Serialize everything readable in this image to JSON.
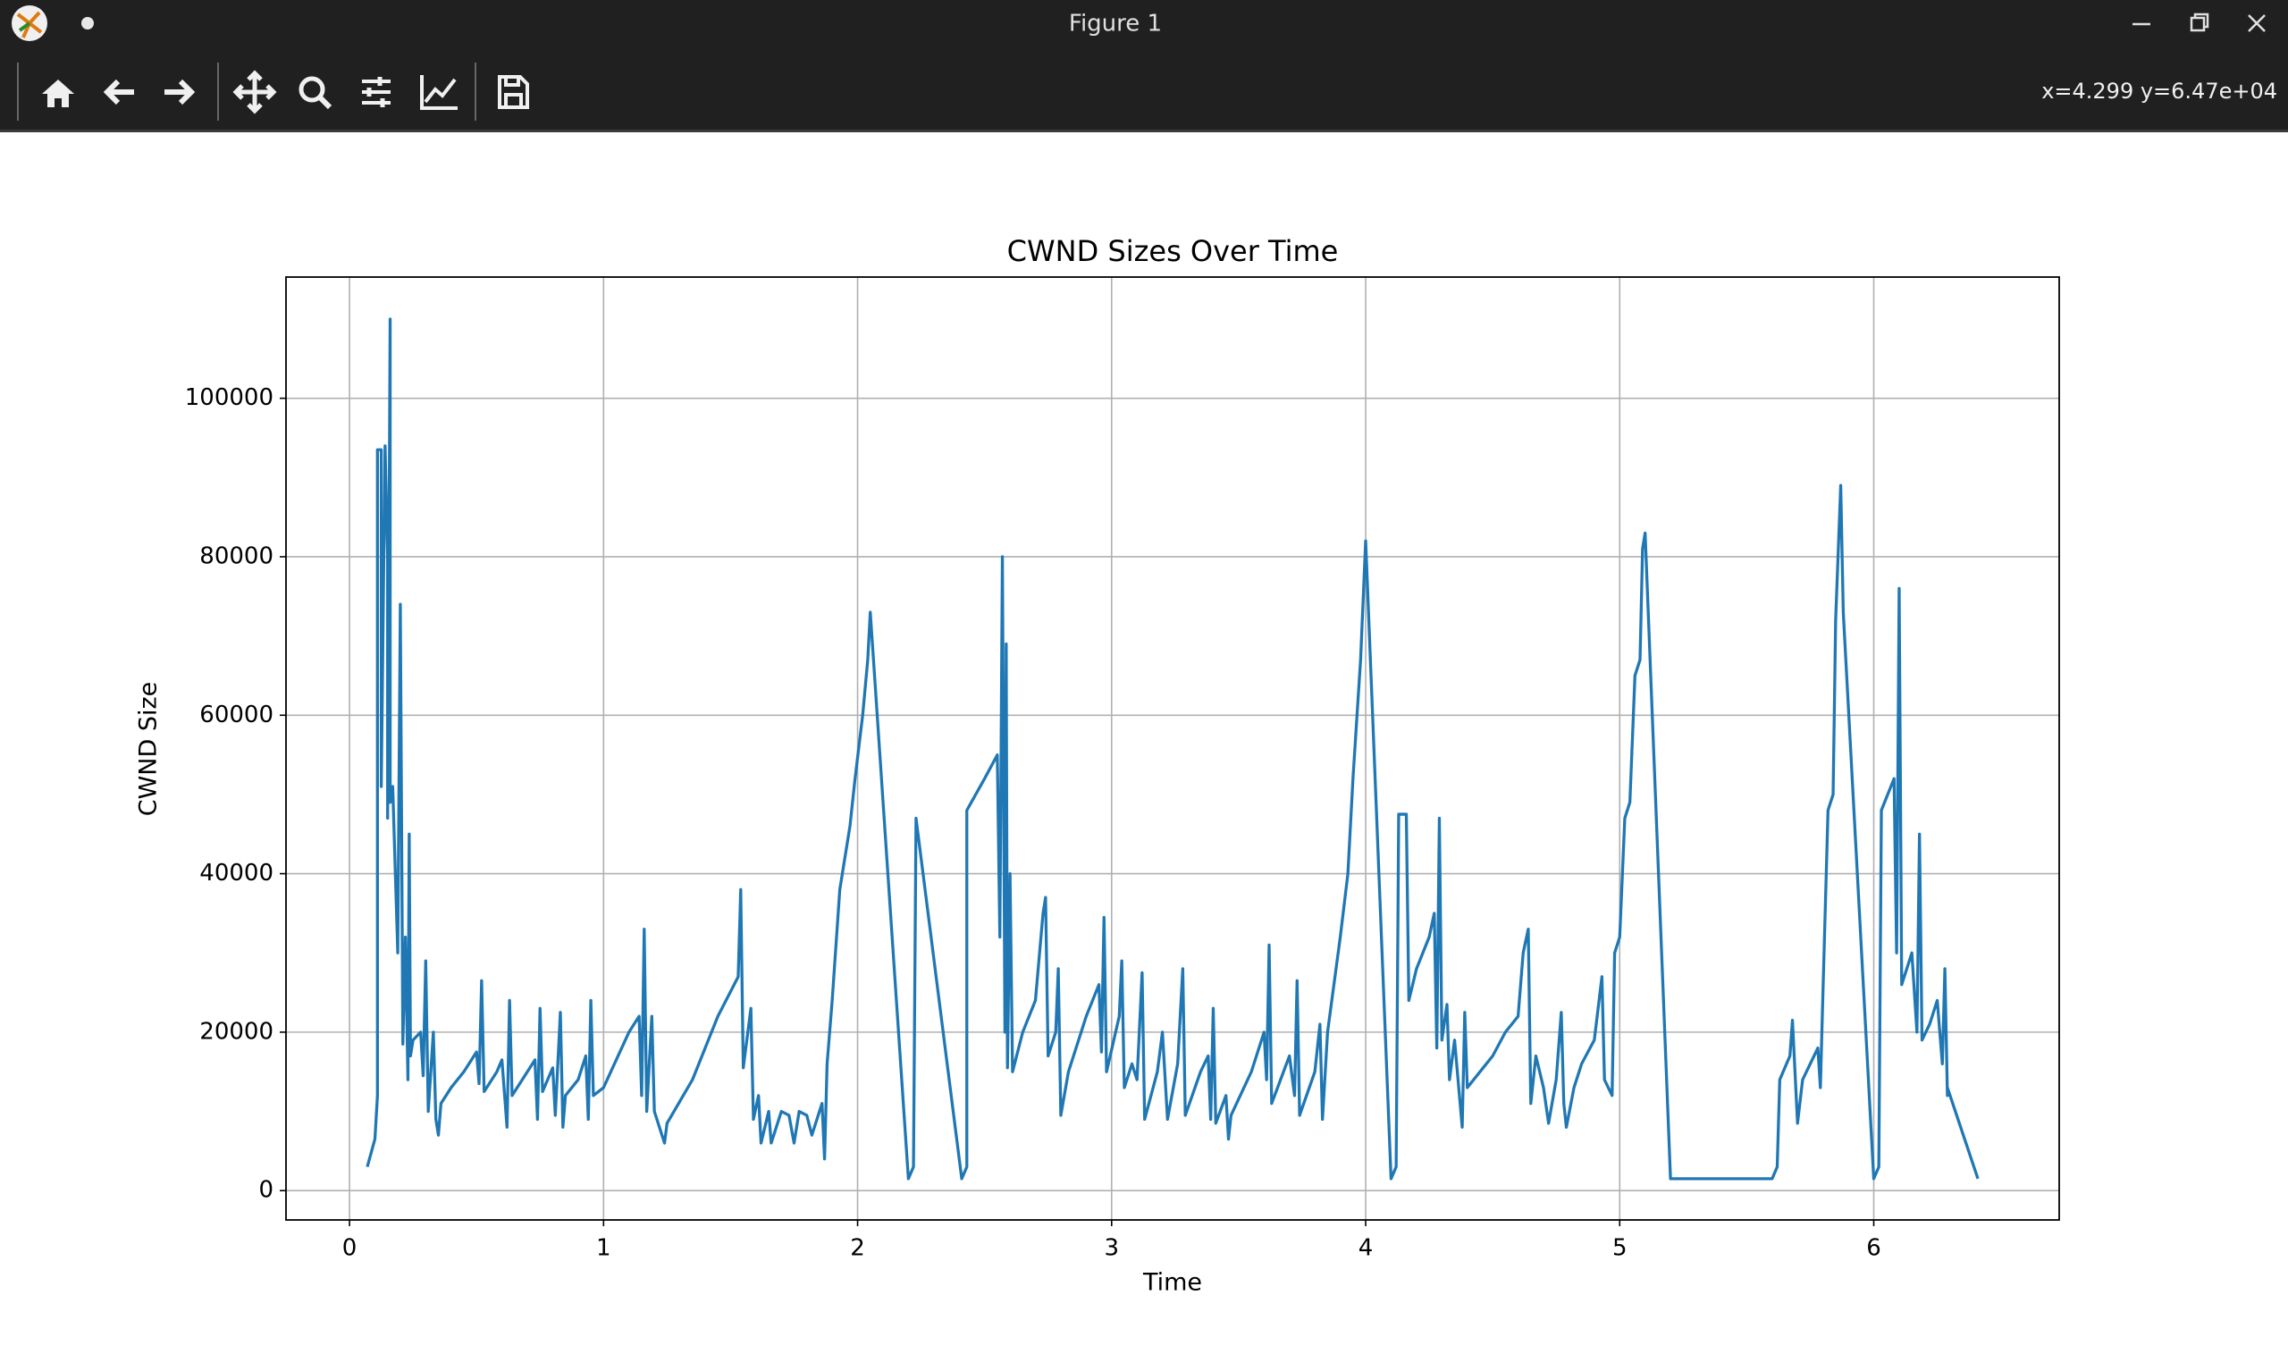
{
  "window": {
    "title": "Figure 1",
    "status": "x=4.299 y=6.47e+04"
  },
  "chart_data": {
    "type": "line",
    "title": "CWND Sizes Over Time",
    "x_label": "Time",
    "y_label": "CWND Size",
    "color": "#1f77b4",
    "grid": true,
    "xlim": [
      -0.25,
      6.73
    ],
    "ylim": [
      -3700,
      115300
    ],
    "xticks": [
      0,
      1,
      2,
      3,
      4,
      5,
      6
    ],
    "yticks": [
      0,
      20000,
      40000,
      60000,
      80000,
      100000
    ],
    "x": [
      0.07,
      0.1,
      0.11,
      0.11,
      0.125,
      0.125,
      0.14,
      0.15,
      0.15,
      0.16,
      0.16,
      0.17,
      0.19,
      0.2,
      0.21,
      0.22,
      0.23,
      0.235,
      0.24,
      0.25,
      0.28,
      0.29,
      0.3,
      0.31,
      0.33,
      0.34,
      0.35,
      0.36,
      0.4,
      0.45,
      0.5,
      0.51,
      0.52,
      0.53,
      0.58,
      0.6,
      0.62,
      0.63,
      0.64,
      0.7,
      0.73,
      0.74,
      0.75,
      0.76,
      0.8,
      0.81,
      0.83,
      0.84,
      0.85,
      0.9,
      0.93,
      0.94,
      0.95,
      0.96,
      1.0,
      1.1,
      1.14,
      1.15,
      1.16,
      1.17,
      1.19,
      1.2,
      1.24,
      1.25,
      1.35,
      1.45,
      1.53,
      1.54,
      1.55,
      1.58,
      1.59,
      1.61,
      1.62,
      1.65,
      1.66,
      1.7,
      1.73,
      1.75,
      1.77,
      1.8,
      1.82,
      1.86,
      1.87,
      1.88,
      1.9,
      1.93,
      1.97,
      1.99,
      2.02,
      2.04,
      2.05,
      2.2,
      2.22,
      2.23,
      2.41,
      2.43,
      2.43,
      2.5,
      2.55,
      2.56,
      2.57,
      2.58,
      2.585,
      2.59,
      2.6,
      2.61,
      2.65,
      2.7,
      2.73,
      2.74,
      2.75,
      2.78,
      2.79,
      2.8,
      2.83,
      2.9,
      2.95,
      2.96,
      2.97,
      2.98,
      3.03,
      3.04,
      3.05,
      3.08,
      3.1,
      3.12,
      3.13,
      3.18,
      3.2,
      3.22,
      3.26,
      3.28,
      3.29,
      3.35,
      3.38,
      3.39,
      3.4,
      3.41,
      3.45,
      3.46,
      3.47,
      3.55,
      3.6,
      3.61,
      3.62,
      3.63,
      3.7,
      3.72,
      3.73,
      3.74,
      3.8,
      3.82,
      3.83,
      3.85,
      3.9,
      3.93,
      3.95,
      3.98,
      4.0,
      4.1,
      4.12,
      4.13,
      4.16,
      4.17,
      4.2,
      4.25,
      4.27,
      4.28,
      4.29,
      4.3,
      4.32,
      4.33,
      4.35,
      4.38,
      4.39,
      4.4,
      4.45,
      4.5,
      4.55,
      4.6,
      4.62,
      4.64,
      4.65,
      4.67,
      4.7,
      4.72,
      4.75,
      4.77,
      4.78,
      4.79,
      4.82,
      4.85,
      4.9,
      4.93,
      4.94,
      4.97,
      4.98,
      5.0,
      5.02,
      5.04,
      5.06,
      5.08,
      5.09,
      5.1,
      5.2,
      5.4,
      5.6,
      5.62,
      5.63,
      5.67,
      5.68,
      5.7,
      5.72,
      5.78,
      5.79,
      5.8,
      5.82,
      5.84,
      5.85,
      5.87,
      5.88,
      6.0,
      6.02,
      6.03,
      6.08,
      6.09,
      6.1,
      6.11,
      6.15,
      6.17,
      6.18,
      6.19,
      6.22,
      6.25,
      6.27,
      6.28,
      6.29,
      6.29,
      6.41
    ],
    "values": [
      3000,
      6500,
      12000,
      93500,
      93500,
      51000,
      94000,
      80000,
      47000,
      110000,
      49000,
      51000,
      30000,
      74000,
      18500,
      32000,
      14000,
      45000,
      17000,
      19000,
      20000,
      14500,
      29000,
      10000,
      20000,
      9000,
      7000,
      11000,
      13000,
      15000,
      17500,
      13500,
      26500,
      12500,
      15000,
      16500,
      8000,
      24000,
      12000,
      15000,
      16500,
      9000,
      23000,
      12500,
      15500,
      9500,
      22500,
      8000,
      12000,
      14000,
      17000,
      9000,
      24000,
      12000,
      13000,
      20000,
      22000,
      12000,
      33000,
      10000,
      22000,
      10000,
      6000,
      8500,
      14000,
      22000,
      27000,
      38000,
      15500,
      23000,
      9000,
      12000,
      6000,
      10000,
      6000,
      10000,
      9500,
      6000,
      10000,
      9500,
      7000,
      11000,
      4000,
      16000,
      24000,
      38000,
      46000,
      52000,
      60000,
      67000,
      73000,
      1500,
      3000,
      47000,
      1500,
      3000,
      48000,
      52000,
      55000,
      32000,
      80000,
      20000,
      69000,
      15500,
      40000,
      15000,
      20000,
      24000,
      35000,
      37000,
      17000,
      20000,
      28000,
      9500,
      15000,
      22000,
      26000,
      17500,
      34500,
      15000,
      22000,
      29000,
      13000,
      16000,
      14000,
      27500,
      9000,
      15000,
      20000,
      9000,
      16000,
      28000,
      9500,
      15000,
      17000,
      9000,
      23000,
      8500,
      12000,
      6500,
      9500,
      15000,
      20000,
      14000,
      31000,
      11000,
      17000,
      12000,
      26500,
      9500,
      15000,
      21000,
      9000,
      20000,
      32000,
      40000,
      52000,
      67000,
      82000,
      1500,
      3000,
      47500,
      47500,
      24000,
      28000,
      32000,
      35000,
      18000,
      47000,
      19000,
      23500,
      14000,
      19000,
      8000,
      22500,
      13000,
      15000,
      17000,
      20000,
      22000,
      30000,
      33000,
      11000,
      17000,
      13000,
      8500,
      14000,
      22500,
      11000,
      8000,
      13000,
      16000,
      19000,
      27000,
      14000,
      12000,
      30000,
      32000,
      47000,
      49000,
      65000,
      67000,
      81000,
      83000,
      1500,
      1500,
      1500,
      3000,
      14000,
      17000,
      21500,
      8500,
      14000,
      18000,
      13000,
      25000,
      48000,
      50000,
      72000,
      89000,
      73000,
      1500,
      3000,
      48000,
      52000,
      30000,
      76000,
      26000,
      30000,
      20000,
      45000,
      19000,
      21000,
      24000,
      16000,
      28000,
      12000,
      13000,
      1500
    ]
  }
}
